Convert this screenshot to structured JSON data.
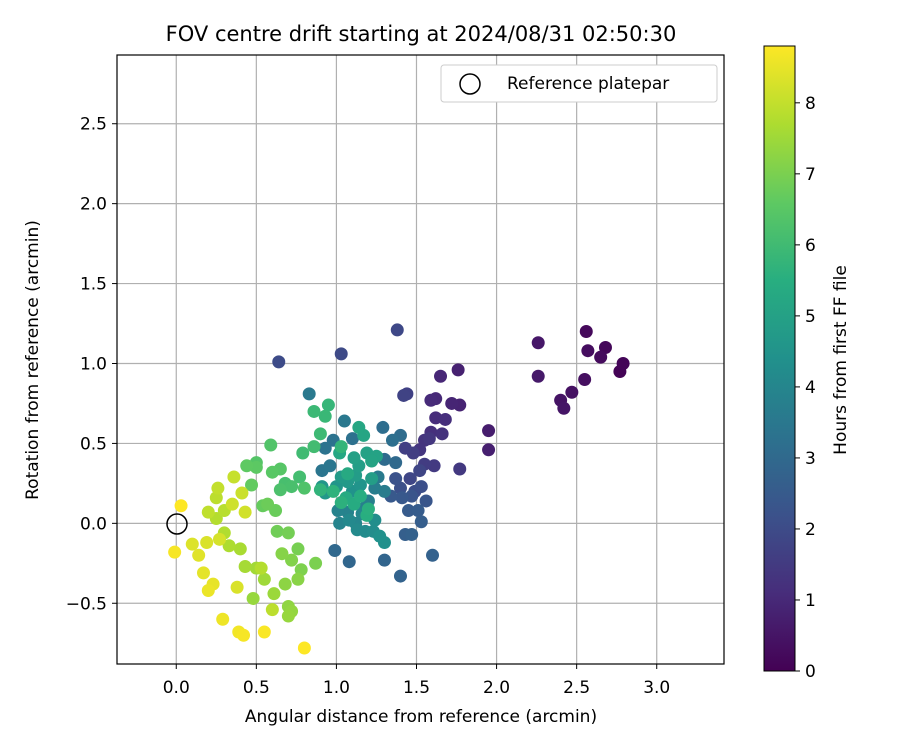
{
  "chart_data": {
    "type": "scatter",
    "title": "FOV centre drift starting at 2024/08/31 02:50:30",
    "xlabel": "Angular distance from reference (arcmin)",
    "ylabel": "Rotation from reference (arcmin)",
    "xlim": [
      -0.37,
      3.42
    ],
    "ylim": [
      -0.88,
      2.93
    ],
    "xticks": [
      0.0,
      0.5,
      1.0,
      1.5,
      2.0,
      2.5,
      3.0
    ],
    "xtick_labels": [
      "0.0",
      "0.5",
      "1.0",
      "1.5",
      "2.0",
      "2.5",
      "3.0"
    ],
    "yticks": [
      -0.5,
      0.0,
      0.5,
      1.0,
      1.5,
      2.0,
      2.5
    ],
    "ytick_labels": [
      "−0.5",
      "0.0",
      "0.5",
      "1.0",
      "1.5",
      "2.0",
      "2.5"
    ],
    "grid": true,
    "legend": {
      "label": "Reference platepar",
      "position": "top-right"
    },
    "reference_point": {
      "x": 0.0,
      "y": 0.0
    },
    "colorbar": {
      "label": "Hours from first FF file",
      "colormap": "viridis",
      "range": [
        0,
        8.8
      ],
      "ticks": [
        0,
        1,
        2,
        3,
        4,
        5,
        6,
        7,
        8
      ],
      "tick_labels": [
        "0",
        "1",
        "2",
        "3",
        "4",
        "5",
        "6",
        "7",
        "8"
      ]
    },
    "points": [
      [
        2.77,
        0.95,
        0.05
      ],
      [
        2.79,
        1.0,
        0.1
      ],
      [
        2.68,
        1.1,
        0.15
      ],
      [
        2.56,
        1.2,
        0.2
      ],
      [
        2.65,
        1.04,
        0.25
      ],
      [
        2.57,
        1.08,
        0.3
      ],
      [
        2.55,
        0.9,
        0.35
      ],
      [
        2.47,
        0.82,
        0.4
      ],
      [
        2.4,
        0.77,
        0.45
      ],
      [
        2.42,
        0.72,
        0.5
      ],
      [
        2.26,
        1.13,
        0.55
      ],
      [
        2.26,
        0.92,
        0.6
      ],
      [
        1.95,
        0.58,
        0.7
      ],
      [
        1.95,
        0.46,
        0.75
      ],
      [
        1.76,
        0.96,
        0.8
      ],
      [
        1.77,
        0.74,
        0.85
      ],
      [
        1.72,
        0.75,
        0.9
      ],
      [
        1.65,
        0.92,
        0.95
      ],
      [
        1.62,
        0.78,
        1.0
      ],
      [
        1.59,
        0.77,
        1.05
      ],
      [
        1.62,
        0.66,
        1.1
      ],
      [
        1.68,
        0.65,
        1.15
      ],
      [
        1.59,
        0.57,
        1.2
      ],
      [
        1.66,
        0.56,
        1.25
      ],
      [
        1.55,
        0.52,
        1.3
      ],
      [
        1.52,
        0.46,
        1.35
      ],
      [
        1.58,
        0.53,
        1.4
      ],
      [
        1.77,
        0.34,
        1.45
      ],
      [
        1.61,
        0.36,
        1.5
      ],
      [
        1.55,
        0.37,
        1.55
      ],
      [
        1.48,
        0.44,
        1.6
      ],
      [
        1.43,
        0.47,
        1.65
      ],
      [
        1.44,
        0.81,
        1.7
      ],
      [
        1.42,
        0.8,
        1.75
      ],
      [
        1.52,
        0.33,
        1.8
      ],
      [
        1.46,
        0.28,
        1.85
      ],
      [
        1.38,
        1.21,
        1.9
      ],
      [
        1.03,
        1.06,
        1.95
      ],
      [
        0.64,
        1.01,
        2.0
      ],
      [
        1.49,
        0.2,
        2.05
      ],
      [
        1.53,
        0.23,
        2.1
      ],
      [
        1.4,
        0.22,
        2.15
      ],
      [
        1.37,
        0.28,
        2.2
      ],
      [
        1.47,
        0.17,
        2.3
      ],
      [
        1.56,
        0.14,
        2.35
      ],
      [
        1.41,
        0.16,
        2.4
      ],
      [
        1.34,
        0.17,
        2.45
      ],
      [
        1.45,
        0.08,
        2.5
      ],
      [
        1.51,
        0.08,
        2.55
      ],
      [
        1.53,
        0.01,
        2.6
      ],
      [
        1.43,
        -0.07,
        2.65
      ],
      [
        1.47,
        -0.07,
        2.7
      ],
      [
        1.6,
        -0.2,
        2.75
      ],
      [
        1.4,
        -0.33,
        2.8
      ],
      [
        1.3,
        -0.23,
        2.85
      ],
      [
        1.08,
        -0.24,
        2.9
      ],
      [
        0.99,
        -0.17,
        2.95
      ],
      [
        1.37,
        0.38,
        3.0
      ],
      [
        1.3,
        0.4,
        3.05
      ],
      [
        1.4,
        0.55,
        3.1
      ],
      [
        1.29,
        0.6,
        3.15
      ],
      [
        1.35,
        0.52,
        3.2
      ],
      [
        1.1,
        0.53,
        3.25
      ],
      [
        0.98,
        0.52,
        3.3
      ],
      [
        0.93,
        0.47,
        3.35
      ],
      [
        0.91,
        0.33,
        3.4
      ],
      [
        0.96,
        0.36,
        3.45
      ],
      [
        1.05,
        0.64,
        3.5
      ],
      [
        0.83,
        0.81,
        3.55
      ],
      [
        1.26,
        0.29,
        3.6
      ],
      [
        1.3,
        0.2,
        3.65
      ],
      [
        1.24,
        0.22,
        3.7
      ],
      [
        1.2,
        0.14,
        3.75
      ],
      [
        1.18,
        0.1,
        3.8
      ],
      [
        1.07,
        0.07,
        3.85
      ],
      [
        1.01,
        0.08,
        3.9
      ],
      [
        1.02,
        0.0,
        3.95
      ],
      [
        1.12,
        0.0,
        4.0
      ],
      [
        1.16,
        0.06,
        4.05
      ],
      [
        1.08,
        0.02,
        4.1
      ],
      [
        1.13,
        -0.04,
        4.15
      ],
      [
        1.18,
        -0.05,
        4.2
      ],
      [
        1.23,
        -0.05,
        4.25
      ],
      [
        1.24,
        0.02,
        4.3
      ],
      [
        1.3,
        -0.12,
        4.35
      ],
      [
        1.27,
        -0.08,
        4.4
      ],
      [
        1.1,
        0.2,
        4.45
      ],
      [
        1.15,
        0.24,
        4.5
      ],
      [
        1.0,
        0.23,
        4.55
      ],
      [
        0.91,
        0.23,
        4.6
      ],
      [
        0.93,
        0.19,
        4.65
      ],
      [
        1.07,
        0.26,
        4.7
      ],
      [
        1.03,
        0.29,
        4.75
      ],
      [
        1.12,
        0.3,
        4.8
      ],
      [
        1.22,
        0.28,
        4.85
      ],
      [
        1.14,
        0.36,
        4.9
      ],
      [
        1.11,
        0.41,
        4.95
      ],
      [
        1.19,
        0.44,
        5.0
      ],
      [
        1.25,
        0.42,
        5.05
      ],
      [
        1.22,
        0.39,
        5.1
      ],
      [
        1.17,
        0.55,
        5.15
      ],
      [
        1.14,
        0.6,
        5.2
      ],
      [
        1.02,
        0.44,
        5.25
      ],
      [
        1.07,
        0.31,
        5.3
      ],
      [
        1.06,
        0.16,
        5.35
      ],
      [
        1.11,
        0.12,
        5.4
      ],
      [
        1.15,
        0.17,
        5.45
      ],
      [
        1.19,
        0.05,
        5.5
      ],
      [
        1.2,
        0.09,
        5.55
      ],
      [
        1.03,
        0.13,
        5.6
      ],
      [
        0.98,
        0.2,
        5.65
      ],
      [
        0.9,
        0.21,
        5.7
      ],
      [
        1.03,
        0.48,
        5.75
      ],
      [
        0.95,
        0.74,
        5.8
      ],
      [
        0.93,
        0.67,
        5.85
      ],
      [
        0.86,
        0.7,
        5.9
      ],
      [
        0.9,
        0.56,
        5.95
      ],
      [
        0.79,
        0.44,
        6.0
      ],
      [
        0.86,
        0.48,
        6.05
      ],
      [
        0.77,
        0.29,
        6.1
      ],
      [
        0.68,
        0.25,
        6.15
      ],
      [
        0.72,
        0.23,
        6.2
      ],
      [
        0.65,
        0.21,
        6.25
      ],
      [
        0.8,
        0.22,
        6.3
      ],
      [
        0.59,
        0.49,
        6.35
      ],
      [
        0.5,
        0.38,
        6.4
      ],
      [
        0.65,
        0.34,
        6.45
      ],
      [
        0.6,
        0.32,
        6.5
      ],
      [
        0.5,
        0.35,
        6.55
      ],
      [
        0.44,
        0.36,
        6.6
      ],
      [
        0.47,
        0.24,
        6.65
      ],
      [
        0.54,
        0.11,
        6.7
      ],
      [
        0.62,
        0.08,
        6.75
      ],
      [
        0.57,
        0.12,
        6.8
      ],
      [
        0.63,
        -0.05,
        6.85
      ],
      [
        0.7,
        -0.06,
        6.9
      ],
      [
        0.76,
        -0.16,
        6.95
      ],
      [
        0.87,
        -0.25,
        7.0
      ],
      [
        0.78,
        -0.29,
        7.05
      ],
      [
        0.72,
        -0.23,
        7.1
      ],
      [
        0.66,
        -0.19,
        7.15
      ],
      [
        0.76,
        -0.35,
        7.2
      ],
      [
        0.68,
        -0.38,
        7.25
      ],
      [
        0.7,
        -0.52,
        7.3
      ],
      [
        0.72,
        -0.55,
        7.35
      ],
      [
        0.7,
        -0.58,
        7.4
      ],
      [
        0.61,
        -0.44,
        7.45
      ],
      [
        0.55,
        -0.35,
        7.5
      ],
      [
        0.5,
        -0.28,
        7.55
      ],
      [
        0.43,
        -0.27,
        7.6
      ],
      [
        0.4,
        -0.16,
        7.65
      ],
      [
        0.33,
        -0.14,
        7.7
      ],
      [
        0.3,
        -0.06,
        7.75
      ],
      [
        0.25,
        0.03,
        7.8
      ],
      [
        0.3,
        0.08,
        7.85
      ],
      [
        0.25,
        0.16,
        7.9
      ],
      [
        0.2,
        0.07,
        7.95
      ],
      [
        0.26,
        0.22,
        8.0
      ],
      [
        0.36,
        0.29,
        8.05
      ],
      [
        0.41,
        0.19,
        8.1
      ],
      [
        0.35,
        0.12,
        8.15
      ],
      [
        0.43,
        0.07,
        8.2
      ],
      [
        0.27,
        -0.1,
        8.25
      ],
      [
        0.19,
        -0.12,
        8.3
      ],
      [
        0.1,
        -0.13,
        8.35
      ],
      [
        0.14,
        -0.2,
        8.4
      ],
      [
        0.17,
        -0.31,
        8.45
      ],
      [
        0.23,
        -0.38,
        8.5
      ],
      [
        0.2,
        -0.42,
        8.55
      ],
      [
        0.29,
        -0.6,
        8.6
      ],
      [
        0.39,
        -0.68,
        8.65
      ],
      [
        0.42,
        -0.7,
        8.7
      ],
      [
        0.55,
        -0.68,
        8.75
      ],
      [
        0.8,
        -0.78,
        8.8
      ],
      [
        0.03,
        0.11,
        8.8
      ],
      [
        -0.01,
        -0.18,
        8.7
      ],
      [
        0.48,
        -0.47,
        7.4
      ],
      [
        0.53,
        -0.28,
        7.8
      ],
      [
        0.38,
        -0.4,
        8.3
      ],
      [
        0.6,
        -0.54,
        7.9
      ]
    ]
  }
}
